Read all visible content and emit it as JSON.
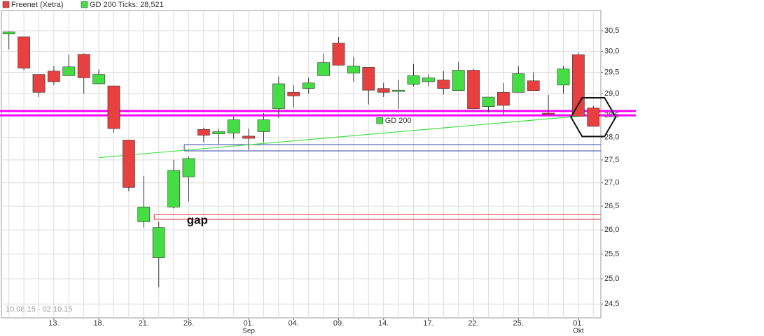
{
  "chart_data": {
    "type": "candlestick",
    "period": "10.08.15 - 02.10.15",
    "log_scale": true,
    "grid": true,
    "up_color": "#44dd44",
    "down_color": "#e84040",
    "categories": [
      null,
      null,
      null,
      "13.",
      null,
      null,
      "18.",
      null,
      null,
      "21.",
      null,
      null,
      "26.",
      null,
      null,
      null,
      "01.",
      null,
      null,
      "04.",
      null,
      null,
      "09.",
      null,
      null,
      "14.",
      null,
      null,
      "17.",
      null,
      null,
      "22.",
      null,
      null,
      "25.",
      null,
      null,
      null,
      "01.",
      null
    ],
    "sublabels": [
      null,
      null,
      null,
      null,
      null,
      null,
      null,
      null,
      null,
      null,
      null,
      null,
      null,
      null,
      null,
      null,
      "Sep",
      null,
      null,
      null,
      null,
      null,
      null,
      null,
      null,
      null,
      null,
      null,
      null,
      null,
      null,
      null,
      null,
      null,
      null,
      null,
      null,
      null,
      "Okt",
      null
    ],
    "series": [
      {
        "name": "Freenet (Xetra)",
        "color": "#e84040",
        "open": [
          30.42,
          30.35,
          29.45,
          29.53,
          29.42,
          29.93,
          29.23,
          29.18,
          27.94,
          26.17,
          25.43,
          26.48,
          27.13,
          28.18,
          28.08,
          28.1,
          28.03,
          28.13,
          28.65,
          29.03,
          29.12,
          29.42,
          30.2,
          29.48,
          29.62,
          29.12,
          29.05,
          29.22,
          29.28,
          29.32,
          29.07,
          29.55,
          28.7,
          29.03,
          29.03,
          29.3,
          28.55,
          29.2,
          29.92,
          28.67
        ],
        "high": [
          30.48,
          30.35,
          29.45,
          29.65,
          29.92,
          29.95,
          29.57,
          29.18,
          27.94,
          27.15,
          26.17,
          27.5,
          27.58,
          28.22,
          28.2,
          28.47,
          28.2,
          28.55,
          29.4,
          29.2,
          29.37,
          29.95,
          30.35,
          29.87,
          29.62,
          29.25,
          29.33,
          29.7,
          29.45,
          29.53,
          29.75,
          29.58,
          28.92,
          29.25,
          29.65,
          29.5,
          28.97,
          29.65,
          29.97,
          28.72
        ],
        "low": [
          30.05,
          29.55,
          28.92,
          29.2,
          29.42,
          29.0,
          29.23,
          28.1,
          26.82,
          26.05,
          24.83,
          26.45,
          26.6,
          27.89,
          27.86,
          27.97,
          27.72,
          27.89,
          28.44,
          28.68,
          29.0,
          29.42,
          29.67,
          29.28,
          28.75,
          28.92,
          28.65,
          29.17,
          29.17,
          28.98,
          29.07,
          28.64,
          28.57,
          28.5,
          29.03,
          29.07,
          28.52,
          29.0,
          28.48,
          28.25
        ],
        "close": [
          30.47,
          29.6,
          29.03,
          29.28,
          29.63,
          29.37,
          29.45,
          28.2,
          26.9,
          26.48,
          26.05,
          27.27,
          27.53,
          28.05,
          28.13,
          28.4,
          27.98,
          28.4,
          29.23,
          28.95,
          29.25,
          29.73,
          29.67,
          29.65,
          29.08,
          29.03,
          29.08,
          29.42,
          29.37,
          29.12,
          29.55,
          28.65,
          28.92,
          28.73,
          29.47,
          29.07,
          28.53,
          29.58,
          28.48,
          28.25
        ]
      }
    ],
    "moving_average": {
      "name": "GD 200",
      "legend_label": "GD 200 Ticks: 28,521",
      "color": "#44dd44",
      "from": 6,
      "to": 38,
      "values": [
        27.55,
        28.48
      ]
    },
    "levels": [
      {
        "color": "#ff00ff",
        "from": 0,
        "values": [
          28.6,
          28.5
        ]
      },
      {
        "color": "#3344aa",
        "from": 12,
        "values": [
          27.84,
          27.7
        ]
      },
      {
        "color": "#dd3333",
        "from": 10,
        "values": [
          26.32,
          26.22
        ],
        "label": "gap"
      }
    ],
    "ylim": [
      24.23,
      31.0
    ],
    "yticks": [
      {
        "value": 24.5,
        "label": "24,5"
      },
      {
        "value": 25.0,
        "label": "25,0"
      },
      {
        "value": 25.5,
        "label": "25,5"
      },
      {
        "value": 26.0,
        "label": "26,0"
      },
      {
        "value": 26.5,
        "label": "26,5"
      },
      {
        "value": 27.0,
        "label": "27,0"
      },
      {
        "value": 27.5,
        "label": "27,5"
      },
      {
        "value": 28.0,
        "label": "28,0"
      },
      {
        "value": 28.5,
        "label": "28,5"
      },
      {
        "value": 29.0,
        "label": "29,0"
      },
      {
        "value": 29.5,
        "label": "29,5"
      },
      {
        "value": 30.0,
        "label": "30,0"
      },
      {
        "value": 30.5,
        "label": "30,5"
      }
    ]
  }
}
